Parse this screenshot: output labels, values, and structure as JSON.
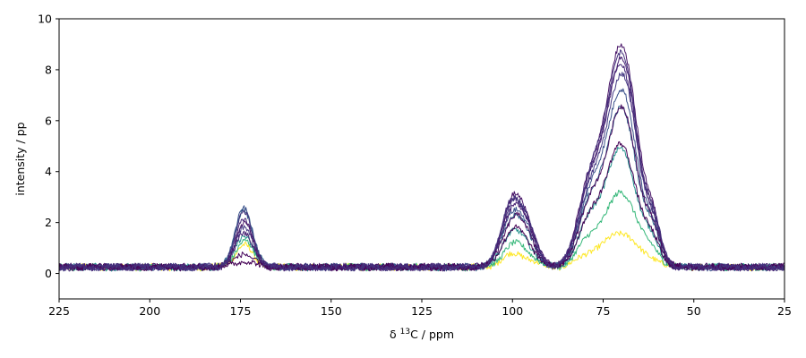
{
  "chart_data": {
    "type": "line",
    "xlabel": {
      "prefix": "δ ",
      "sup": "13",
      "suffix": "C / ppm"
    },
    "ylabel": "intensity / pp",
    "xlim": [
      225,
      25
    ],
    "ylim": [
      -1,
      10
    ],
    "xticks": [
      225,
      200,
      175,
      150,
      125,
      100,
      75,
      50,
      25
    ],
    "yticks": [
      0,
      2,
      4,
      6,
      8,
      10
    ],
    "grid": false,
    "colormap": "viridis",
    "baseline": 0.25,
    "peaks_ppm": [
      174,
      100,
      70
    ],
    "series": [
      {
        "color": "#fde725",
        "peaks": [
          1.1,
          0.85,
          1.7
        ]
      },
      {
        "color": "#35b779",
        "peaks": [
          1.3,
          1.3,
          3.4
        ]
      },
      {
        "color": "#21918c",
        "peaks": [
          1.5,
          1.9,
          5.2
        ]
      },
      {
        "color": "#31688e",
        "peaks": [
          2.5,
          2.6,
          6.9
        ]
      },
      {
        "color": "#3b528b",
        "peaks": [
          2.55,
          2.9,
          7.7
        ]
      },
      {
        "color": "#443983",
        "peaks": [
          1.8,
          3.3,
          8.4
        ]
      },
      {
        "color": "#472878",
        "peaks": [
          2.1,
          3.4,
          8.8
        ]
      },
      {
        "color": "#481467",
        "peaks": [
          2.0,
          3.5,
          9.6
        ]
      },
      {
        "color": "#440154",
        "peaks": [
          0.5,
          2.0,
          5.4
        ]
      },
      {
        "color": "#46085c",
        "peaks": [
          0.8,
          2.55,
          6.95
        ]
      },
      {
        "color": "#482173",
        "peaks": [
          1.6,
          3.1,
          9.0
        ]
      },
      {
        "color": "#45337d",
        "peaks": [
          2.4,
          3.45,
          9.3
        ]
      }
    ]
  }
}
